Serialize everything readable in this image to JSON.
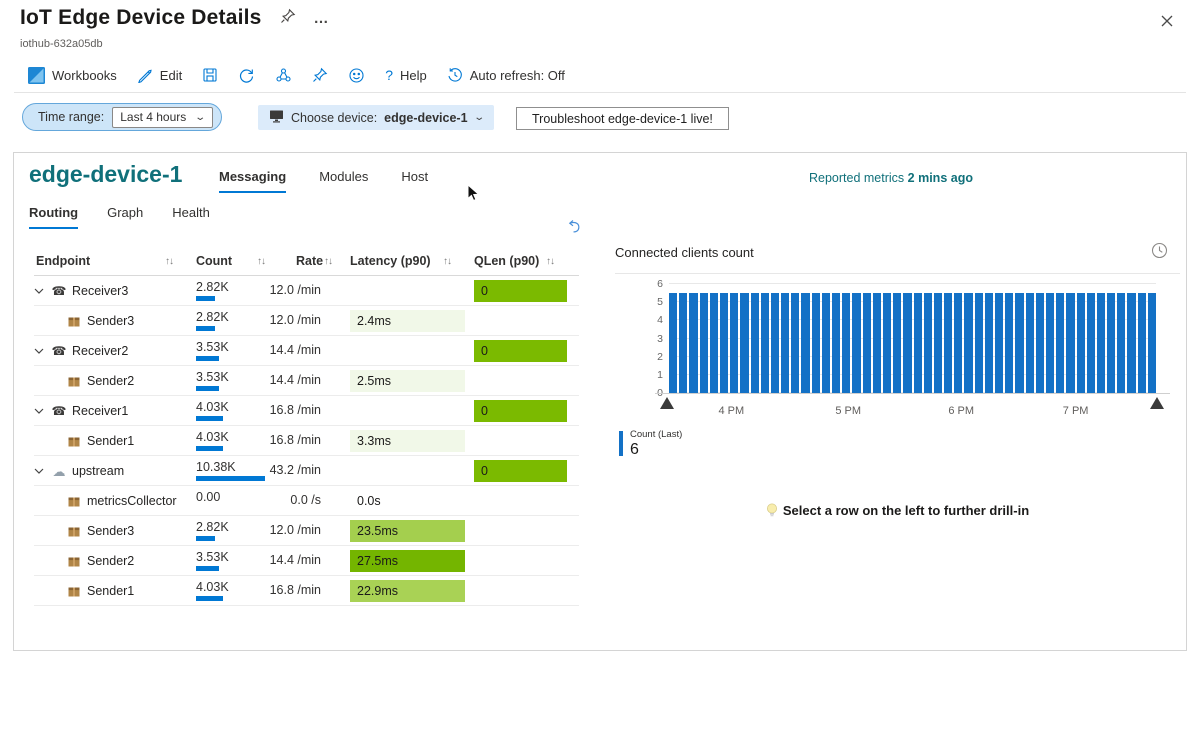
{
  "header": {
    "title": "IoT Edge Device Details",
    "subtitle": "iothub-632a05db",
    "ellipsis": "…"
  },
  "toolbar": {
    "workbooks": "Workbooks",
    "edit": "Edit",
    "help_glyph": "?",
    "help": "Help",
    "auto_refresh": "Auto refresh: Off"
  },
  "filters": {
    "time_range_label": "Time range:",
    "time_range_value": "Last 4 hours",
    "device_label": "Choose device:",
    "device_value": "edge-device-1",
    "troubleshoot": "Troubleshoot edge-device-1 live!"
  },
  "device": {
    "name": "edge-device-1",
    "tabs": [
      {
        "label": "Messaging",
        "active": true
      },
      {
        "label": "Modules",
        "active": false
      },
      {
        "label": "Host",
        "active": false
      }
    ],
    "subtabs": [
      {
        "label": "Routing",
        "active": true
      },
      {
        "label": "Graph",
        "active": false
      },
      {
        "label": "Health",
        "active": false
      }
    ],
    "reported_label": "Reported metrics",
    "reported_value": "2 mins ago"
  },
  "table": {
    "sort_glyph": "↑↓",
    "columns": [
      "Endpoint",
      "Count",
      "Rate",
      "Latency (p90)",
      "QLen (p90)"
    ],
    "count_max": 10380,
    "colors": {
      "qlen_bg": "#7bba00",
      "pale": "#f1f8e8",
      "heat_mid": "#a4cf4e",
      "heat_high": "#74b500",
      "heat_low": "#a9d255"
    },
    "rows": [
      {
        "name": "Receiver3",
        "icon": "phone",
        "child": false,
        "count": "2.82K",
        "count_value": 2820,
        "rate": "12.0 /min",
        "latency": "",
        "latency_style": "none",
        "qlen": "0"
      },
      {
        "name": "Sender3",
        "icon": "box",
        "child": true,
        "count": "2.82K",
        "count_value": 2820,
        "rate": "12.0 /min",
        "latency": "2.4ms",
        "latency_style": "pale",
        "qlen": ""
      },
      {
        "name": "Receiver2",
        "icon": "phone",
        "child": false,
        "count": "3.53K",
        "count_value": 3530,
        "rate": "14.4 /min",
        "latency": "",
        "latency_style": "none",
        "qlen": "0"
      },
      {
        "name": "Sender2",
        "icon": "box",
        "child": true,
        "count": "3.53K",
        "count_value": 3530,
        "rate": "14.4 /min",
        "latency": "2.5ms",
        "latency_style": "pale",
        "qlen": ""
      },
      {
        "name": "Receiver1",
        "icon": "phone",
        "child": false,
        "count": "4.03K",
        "count_value": 4030,
        "rate": "16.8 /min",
        "latency": "",
        "latency_style": "none",
        "qlen": "0"
      },
      {
        "name": "Sender1",
        "icon": "box",
        "child": true,
        "count": "4.03K",
        "count_value": 4030,
        "rate": "16.8 /min",
        "latency": "3.3ms",
        "latency_style": "pale",
        "qlen": ""
      },
      {
        "name": "upstream",
        "icon": "cloud",
        "child": false,
        "count": "10.38K",
        "count_value": 10380,
        "rate": "43.2 /min",
        "latency": "",
        "latency_style": "none",
        "qlen": "0"
      },
      {
        "name": "metricsCollector",
        "icon": "box",
        "child": true,
        "count": "0.00",
        "count_value": 0,
        "rate": "0.0 /s",
        "latency": "0.0s",
        "latency_style": "none",
        "qlen": ""
      },
      {
        "name": "Sender3",
        "icon": "box",
        "child": true,
        "count": "2.82K",
        "count_value": 2820,
        "rate": "12.0 /min",
        "latency": "23.5ms",
        "latency_style": "heat_mid",
        "qlen": ""
      },
      {
        "name": "Sender2",
        "icon": "box",
        "child": true,
        "count": "3.53K",
        "count_value": 3530,
        "rate": "14.4 /min",
        "latency": "27.5ms",
        "latency_style": "heat_high",
        "qlen": ""
      },
      {
        "name": "Sender1",
        "icon": "box",
        "child": true,
        "count": "4.03K",
        "count_value": 4030,
        "rate": "16.8 /min",
        "latency": "22.9ms",
        "latency_style": "heat_low",
        "qlen": ""
      }
    ]
  },
  "chart_data": {
    "type": "bar",
    "title": "Connected clients count",
    "ylabel": "",
    "xlabel": "",
    "ylim": [
      0,
      6.5
    ],
    "y_ticks": [
      0,
      1,
      2,
      3,
      4,
      5,
      6
    ],
    "x_ticks": [
      {
        "label": "4 PM",
        "f": 0.128
      },
      {
        "label": "5 PM",
        "f": 0.368
      },
      {
        "label": "6 PM",
        "f": 0.6
      },
      {
        "label": "7 PM",
        "f": 0.835
      }
    ],
    "bar_color": "#1371c6",
    "grid": true,
    "values": [
      6,
      6,
      6,
      6,
      6,
      6,
      6,
      6,
      6,
      6,
      6,
      6,
      6,
      6,
      6,
      6,
      6,
      6,
      6,
      6,
      6,
      6,
      6,
      6,
      6,
      6,
      6,
      6,
      6,
      6,
      6,
      6,
      6,
      6,
      6,
      6,
      6,
      6,
      6,
      6,
      6,
      6,
      6,
      6,
      6,
      6,
      6,
      6
    ]
  },
  "legend": {
    "label": "Count (Last)",
    "value": "6"
  },
  "tip": "Select a row on the left to further drill-in"
}
